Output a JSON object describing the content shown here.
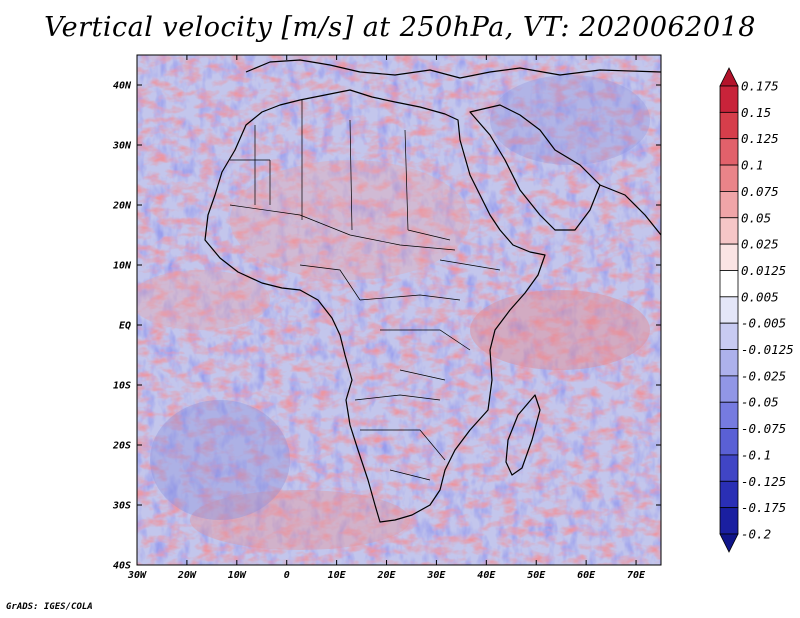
{
  "title": "Vertical velocity [m/s] at 250hPa, VT: 2020062018",
  "footer": "GrADS: IGES/COLA",
  "lat_labels": [
    "40N",
    "30N",
    "20N",
    "10N",
    "EQ",
    "10S",
    "20S",
    "30S",
    "40S"
  ],
  "lat_values": [
    40,
    30,
    20,
    10,
    0,
    -10,
    -20,
    -30,
    -40
  ],
  "lon_labels": [
    "30W",
    "20W",
    "10W",
    "0",
    "10E",
    "20E",
    "30E",
    "40E",
    "50E",
    "60E",
    "70E"
  ],
  "lon_values": [
    -30,
    -20,
    -10,
    0,
    10,
    20,
    30,
    40,
    50,
    60,
    70
  ],
  "extent": {
    "lon_min": -30,
    "lon_max": 75,
    "lat_min": -40,
    "lat_max": 45
  },
  "colorbar": {
    "labels": [
      "0.175",
      "0.15",
      "0.125",
      "0.1",
      "0.075",
      "0.05",
      "0.025",
      "0.0125",
      "0.005",
      "-0.005",
      "-0.0125",
      "-0.025",
      "-0.05",
      "-0.075",
      "-0.1",
      "-0.125",
      "-0.175",
      "-0.2"
    ],
    "colors": [
      "#b3132b",
      "#c8233a",
      "#d63e4b",
      "#e2616b",
      "#ea8489",
      "#f0a5a8",
      "#f6c6c7",
      "#fbe4e4",
      "#ffffff",
      "#e4e6f8",
      "#c8cbf2",
      "#adb1ec",
      "#9196e6",
      "#767be0",
      "#5a60d5",
      "#4045c5",
      "#2a2fb5",
      "#1a1fa0",
      "#10158a"
    ]
  },
  "colors": {
    "background": "#ffffff",
    "land_outline": "#000000",
    "base_field": "#c3c6ec"
  }
}
